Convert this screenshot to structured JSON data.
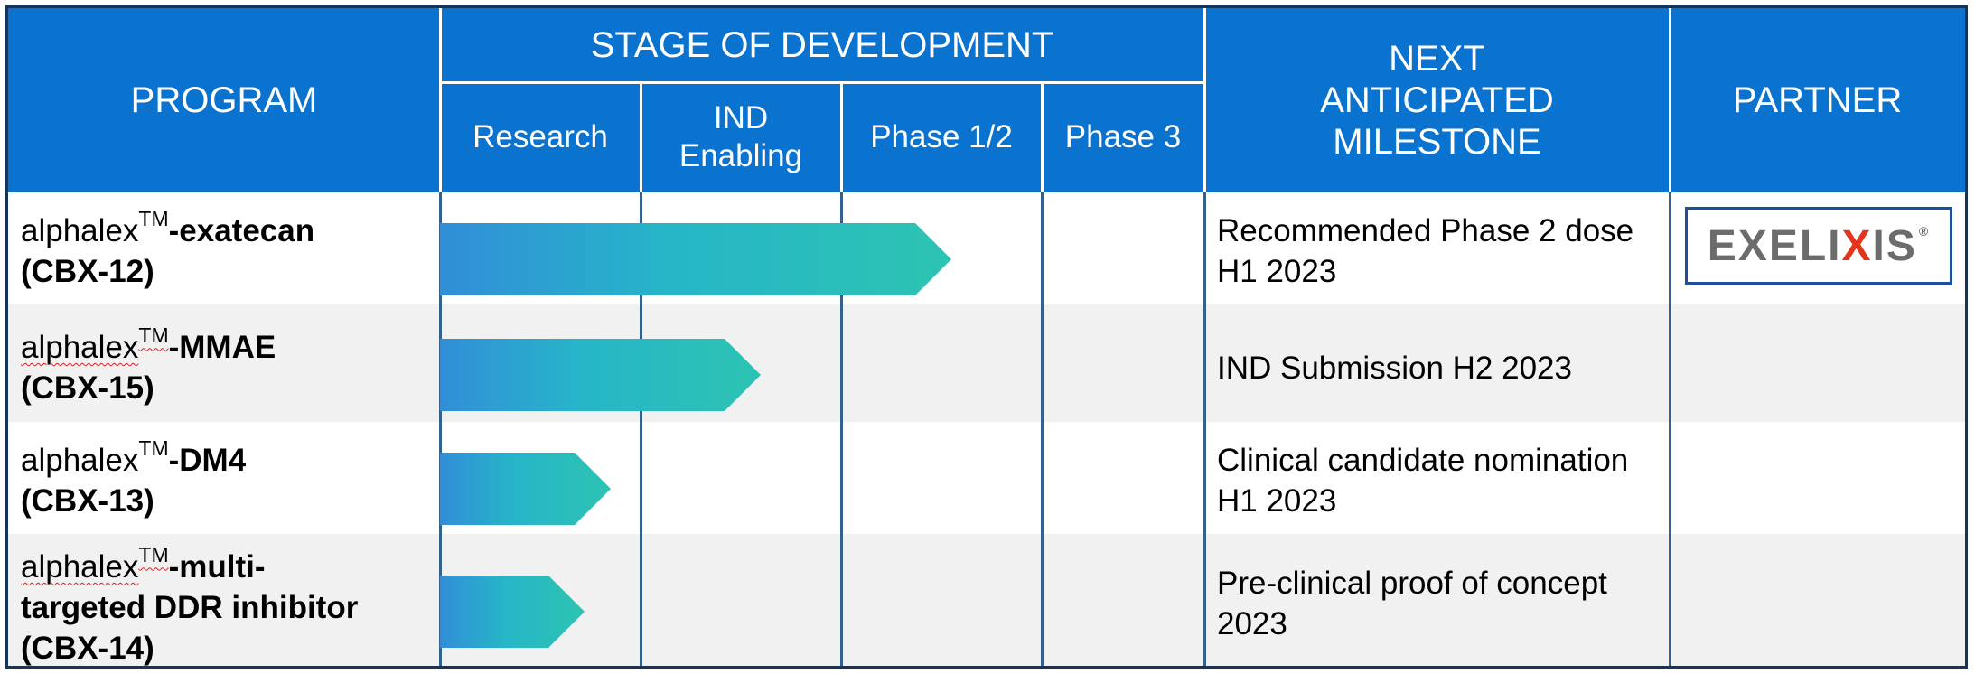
{
  "header": {
    "program": "PROGRAM",
    "stage": "STAGE OF DEVELOPMENT",
    "stages": [
      "Research",
      "IND Enabling",
      "Phase 1/2",
      "Phase 3"
    ],
    "milestone": "NEXT ANTICIPATED MILESTONE",
    "partner": "PARTNER"
  },
  "programs": [
    {
      "prefix": "alphalex",
      "tm": "TM",
      "name": "-exatecan",
      "name2": "(CBX-12)",
      "milestone": "Recommended Phase 2 dose H1 2023",
      "progress_stage_units": 2.55,
      "partner": "EXELIXIS"
    },
    {
      "prefix": "alphalex",
      "tm": "TM",
      "name": "-MMAE",
      "name2": "(CBX-15)",
      "milestone": "IND Submission H2 2023",
      "progress_stage_units": 1.6,
      "partner": ""
    },
    {
      "prefix": "alphalex",
      "tm": "TM",
      "name": "-DM4",
      "name2": "(CBX-13)",
      "milestone": "Clinical candidate nomination H1 2023",
      "progress_stage_units": 0.85,
      "partner": ""
    },
    {
      "prefix": "alphalex",
      "tm": "TM",
      "name": "-multi-",
      "name2": "targeted DDR inhibitor",
      "name3": "(CBX-14)",
      "milestone": "Pre-clinical proof of concept 2023",
      "progress_stage_units": 0.72,
      "partner": ""
    }
  ],
  "partner_logo": {
    "text_a": "EXELI",
    "text_x": "X",
    "text_b": "IS",
    "reg": "®"
  },
  "colors": {
    "header_bg": "#0a73cf",
    "arrow_start": "#318ed8",
    "arrow_end": "#2dc3b2",
    "logo_red": "#e2351b"
  }
}
